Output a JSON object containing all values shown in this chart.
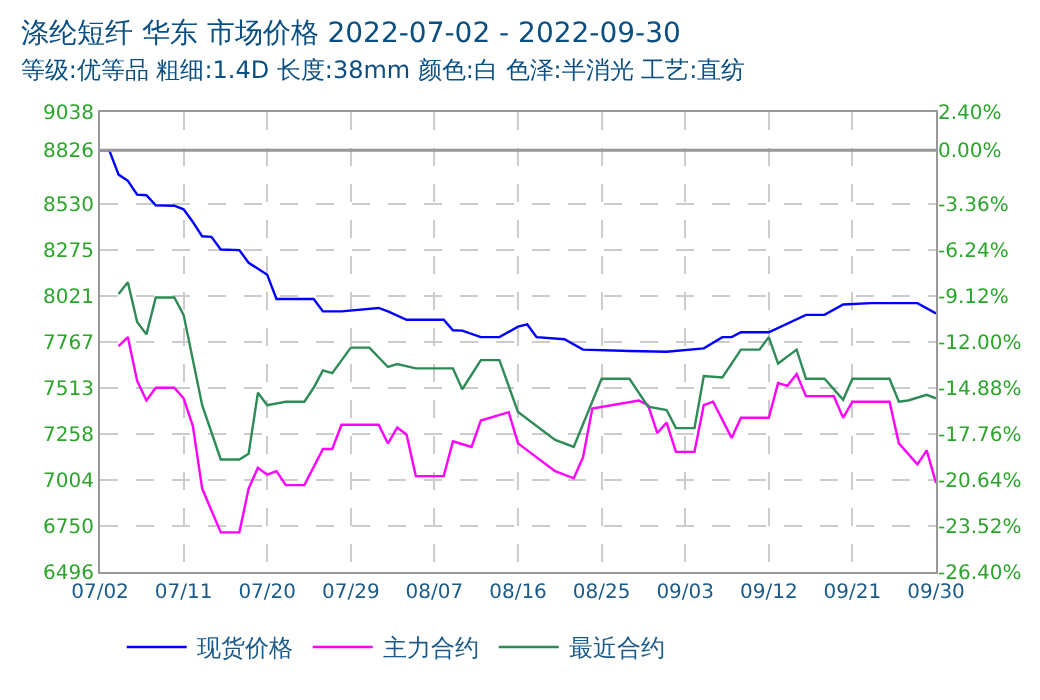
{
  "chart_data": {
    "type": "line",
    "title": "涤纶短纤 华东 市场价格 2022-07-02 - 2022-09-30",
    "subtitle": "等级:优等品 粗细:1.4D 长度:38mm 颜色:白 色泽:半消光 工艺:直纺",
    "xlim": [
      "2022-07-02",
      "2022-09-30"
    ],
    "xticks": [
      {
        "value": "2022-07-02",
        "label": "07/02"
      },
      {
        "value": "2022-07-11",
        "label": "07/11"
      },
      {
        "value": "2022-07-20",
        "label": "07/20"
      },
      {
        "value": "2022-07-29",
        "label": "07/29"
      },
      {
        "value": "2022-08-07",
        "label": "08/07"
      },
      {
        "value": "2022-08-16",
        "label": "08/16"
      },
      {
        "value": "2022-08-25",
        "label": "08/25"
      },
      {
        "value": "2022-09-03",
        "label": "09/03"
      },
      {
        "value": "2022-09-12",
        "label": "09/12"
      },
      {
        "value": "2022-09-21",
        "label": "09/21"
      },
      {
        "value": "2022-09-30",
        "label": "09/30"
      }
    ],
    "ylim": [
      6496,
      9038
    ],
    "yticks": [
      6496,
      6750,
      7004,
      7258,
      7513,
      7767,
      8021,
      8275,
      8530,
      8826,
      9038
    ],
    "y2lim": [
      -26.4,
      2.4
    ],
    "y2ticks": [
      {
        "value": -26.4,
        "label": "-26.40%"
      },
      {
        "value": -23.52,
        "label": "-23.52%"
      },
      {
        "value": -20.64,
        "label": "-20.64%"
      },
      {
        "value": -17.76,
        "label": "-17.76%"
      },
      {
        "value": -14.88,
        "label": "-14.88%"
      },
      {
        "value": -12,
        "label": "-12.00%"
      },
      {
        "value": -9.12,
        "label": "-9.12%"
      },
      {
        "value": -6.24,
        "label": "-6.24%"
      },
      {
        "value": -3.36,
        "label": "-3.36%"
      },
      {
        "value": 0,
        "label": "0.00%"
      },
      {
        "value": 2.4,
        "label": "2.40%"
      }
    ],
    "grid": true,
    "legend": "bottom",
    "marker": "none",
    "line_style": "solid",
    "ref_lines": [
      {
        "axis": "y",
        "value": 8826,
        "color": "#999999"
      }
    ],
    "series": [
      {
        "name": "现货价格",
        "color": "#0000ff",
        "x": [
          "2022-07-02",
          "2022-07-03",
          "2022-07-04",
          "2022-07-05",
          "2022-07-06",
          "2022-07-07",
          "2022-07-08",
          "2022-07-10",
          "2022-07-11",
          "2022-07-12",
          "2022-07-13",
          "2022-07-14",
          "2022-07-15",
          "2022-07-17",
          "2022-07-18",
          "2022-07-20",
          "2022-07-21",
          "2022-07-25",
          "2022-07-26",
          "2022-07-28",
          "2022-08-01",
          "2022-08-02",
          "2022-08-04",
          "2022-08-08",
          "2022-08-09",
          "2022-08-10",
          "2022-08-12",
          "2022-08-14",
          "2022-08-16",
          "2022-08-17",
          "2022-08-18",
          "2022-08-21",
          "2022-08-23",
          "2022-08-28",
          "2022-09-01",
          "2022-09-05",
          "2022-09-07",
          "2022-09-08",
          "2022-09-09",
          "2022-09-12",
          "2022-09-16",
          "2022-09-18",
          "2022-09-20",
          "2022-09-23",
          "2022-09-28",
          "2022-09-30"
        ],
        "values": [
          8826,
          8826,
          8692,
          8658,
          8581,
          8578,
          8523,
          8520,
          8500,
          8430,
          8351,
          8348,
          8278,
          8275,
          8205,
          8139,
          8005,
          8005,
          7936,
          7936,
          7955,
          7936,
          7890,
          7890,
          7832,
          7830,
          7794,
          7794,
          7852,
          7864,
          7794,
          7782,
          7725,
          7717,
          7713,
          7732,
          7794,
          7794,
          7821,
          7821,
          7917,
          7917,
          7974,
          7982,
          7982,
          7925
        ]
      },
      {
        "name": "主力合约",
        "color": "#ff00ff",
        "x": [
          "2022-07-04",
          "2022-07-05",
          "2022-07-06",
          "2022-07-07",
          "2022-07-08",
          "2022-07-10",
          "2022-07-11",
          "2022-07-12",
          "2022-07-13",
          "2022-07-15",
          "2022-07-17",
          "2022-07-18",
          "2022-07-19",
          "2022-07-20",
          "2022-07-21",
          "2022-07-22",
          "2022-07-24",
          "2022-07-26",
          "2022-07-27",
          "2022-07-28",
          "2022-08-01",
          "2022-08-02",
          "2022-08-03",
          "2022-08-04",
          "2022-08-05",
          "2022-08-08",
          "2022-08-09",
          "2022-08-11",
          "2022-08-12",
          "2022-08-15",
          "2022-08-16",
          "2022-08-20",
          "2022-08-22",
          "2022-08-23",
          "2022-08-24",
          "2022-08-29",
          "2022-08-30",
          "2022-08-31",
          "2022-09-01",
          "2022-09-02",
          "2022-09-04",
          "2022-09-05",
          "2022-09-06",
          "2022-09-08",
          "2022-09-09",
          "2022-09-12",
          "2022-09-13",
          "2022-09-14",
          "2022-09-15",
          "2022-09-16",
          "2022-09-19",
          "2022-09-20",
          "2022-09-21",
          "2022-09-25",
          "2022-09-26",
          "2022-09-28",
          "2022-09-29",
          "2022-09-30"
        ],
        "values": [
          7744,
          7794,
          7552,
          7444,
          7514,
          7514,
          7456,
          7302,
          6957,
          6715,
          6715,
          6957,
          7072,
          7034,
          7053,
          6976,
          6976,
          7176,
          7176,
          7310,
          7310,
          7206,
          7295,
          7256,
          7026,
          7026,
          7218,
          7187,
          7333,
          7379,
          7207,
          7053,
          7014,
          7130,
          7399,
          7444,
          7418,
          7264,
          7322,
          7160,
          7160,
          7418,
          7437,
          7237,
          7348,
          7348,
          7540,
          7525,
          7590,
          7468,
          7468,
          7348,
          7437,
          7437,
          7207,
          7091,
          7168,
          6988
        ]
      },
      {
        "name": "最近合约",
        "color": "#2e8b57",
        "x": [
          "2022-07-04",
          "2022-07-05",
          "2022-07-06",
          "2022-07-07",
          "2022-07-08",
          "2022-07-10",
          "2022-07-11",
          "2022-07-13",
          "2022-07-15",
          "2022-07-17",
          "2022-07-18",
          "2022-07-19",
          "2022-07-20",
          "2022-07-22",
          "2022-07-24",
          "2022-07-25",
          "2022-07-26",
          "2022-07-27",
          "2022-07-29",
          "2022-07-31",
          "2022-08-02",
          "2022-08-03",
          "2022-08-05",
          "2022-08-09",
          "2022-08-10",
          "2022-08-12",
          "2022-08-14",
          "2022-08-16",
          "2022-08-20",
          "2022-08-22",
          "2022-08-25",
          "2022-08-28",
          "2022-08-30",
          "2022-09-01",
          "2022-09-02",
          "2022-09-04",
          "2022-09-05",
          "2022-09-07",
          "2022-09-09",
          "2022-09-11",
          "2022-09-12",
          "2022-09-13",
          "2022-09-15",
          "2022-09-16",
          "2022-09-18",
          "2022-09-20",
          "2022-09-21",
          "2022-09-25",
          "2022-09-26",
          "2022-09-27",
          "2022-09-29",
          "2022-09-30"
        ],
        "values": [
          8032,
          8097,
          7878,
          7809,
          8013,
          8013,
          7917,
          7418,
          7118,
          7118,
          7149,
          7487,
          7418,
          7437,
          7437,
          7514,
          7610,
          7595,
          7736,
          7736,
          7629,
          7645,
          7621,
          7621,
          7506,
          7667,
          7667,
          7380,
          7226,
          7187,
          7564,
          7564,
          7410,
          7391,
          7291,
          7291,
          7579,
          7571,
          7725,
          7725,
          7794,
          7648,
          7725,
          7564,
          7564,
          7448,
          7564,
          7564,
          7437,
          7444,
          7475,
          7456
        ]
      }
    ]
  }
}
